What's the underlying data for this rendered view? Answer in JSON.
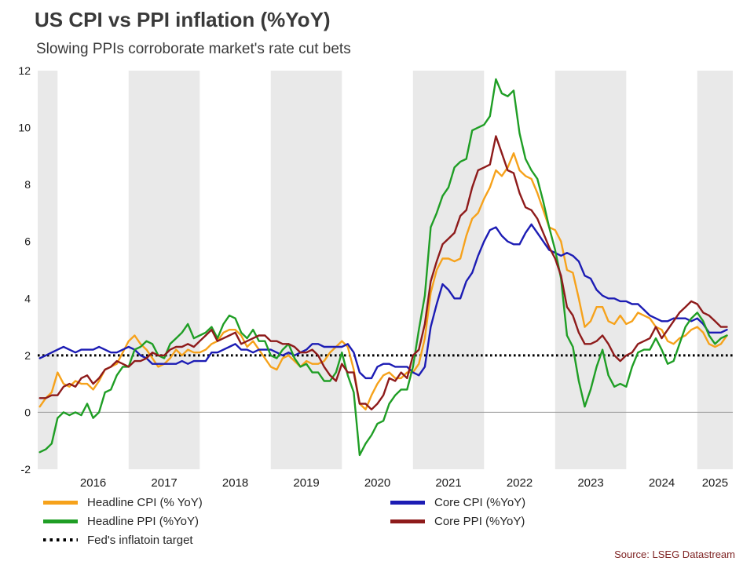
{
  "chart_data": {
    "type": "line",
    "title": "US CPI vs PPI inflation (%YoY)",
    "subtitle": "Slowing PPIs corroborate market's rate cut bets",
    "xlabel": "",
    "ylabel": "",
    "ylim": [
      -2,
      12
    ],
    "y_ticks": [
      -2,
      0,
      2,
      4,
      6,
      8,
      10,
      12
    ],
    "x_domain": [
      2015.72,
      2025.5
    ],
    "x_start": {
      "year": 2015,
      "month": 10
    },
    "frequency": "monthly",
    "x_tick_years": [
      2016,
      2017,
      2018,
      2019,
      2020,
      2021,
      2022,
      2023,
      2024,
      2025
    ],
    "shaded_years": [
      2015,
      2017,
      2019,
      2021,
      2023,
      2025
    ],
    "band_color": "#e9e9e9",
    "grid": "off",
    "legend_position": "bottom",
    "target_line": {
      "value": 2,
      "label": "Fed's inflatoin target",
      "color": "#000000",
      "style": "dotted"
    },
    "series": [
      {
        "id": "headline-cpi",
        "name": "Headline CPI (% YoY)",
        "color": "#f6a21b",
        "values": [
          0.2,
          0.5,
          0.7,
          1.4,
          1.0,
          0.9,
          1.1,
          1.0,
          1.0,
          0.8,
          1.1,
          1.5,
          1.6,
          1.7,
          2.1,
          2.5,
          2.7,
          2.4,
          2.2,
          1.9,
          1.6,
          1.7,
          1.9,
          2.2,
          2.0,
          2.2,
          2.1,
          2.1,
          2.2,
          2.4,
          2.5,
          2.8,
          2.9,
          2.9,
          2.7,
          2.3,
          2.5,
          2.2,
          1.9,
          1.6,
          1.5,
          1.9,
          2.0,
          1.8,
          1.6,
          1.8,
          1.7,
          1.7,
          1.8,
          2.1,
          2.3,
          2.5,
          2.3,
          1.5,
          0.3,
          0.1,
          0.6,
          1.0,
          1.3,
          1.4,
          1.2,
          1.2,
          1.4,
          1.4,
          1.7,
          2.6,
          4.2,
          5.0,
          5.4,
          5.4,
          5.3,
          5.4,
          6.2,
          6.8,
          7.0,
          7.5,
          7.9,
          8.5,
          8.3,
          8.6,
          9.1,
          8.5,
          8.3,
          8.2,
          7.7,
          7.1,
          6.5,
          6.4,
          6.0,
          5.0,
          4.9,
          4.0,
          3.0,
          3.2,
          3.7,
          3.7,
          3.2,
          3.1,
          3.4,
          3.1,
          3.2,
          3.5,
          3.4,
          3.3,
          3.0,
          2.9,
          2.5,
          2.4,
          2.6,
          2.7,
          2.9,
          3.0,
          2.8,
          2.4,
          2.3,
          2.4,
          2.7
        ]
      },
      {
        "id": "core-cpi",
        "name": "Core CPI (%YoY)",
        "color": "#1c1cb4",
        "values": [
          1.9,
          2.0,
          2.1,
          2.2,
          2.3,
          2.2,
          2.1,
          2.2,
          2.2,
          2.2,
          2.3,
          2.2,
          2.1,
          2.1,
          2.2,
          2.3,
          2.2,
          2.0,
          1.9,
          1.7,
          1.7,
          1.7,
          1.7,
          1.7,
          1.8,
          1.7,
          1.8,
          1.8,
          1.8,
          2.1,
          2.1,
          2.2,
          2.3,
          2.4,
          2.2,
          2.2,
          2.1,
          2.2,
          2.2,
          2.2,
          2.1,
          2.0,
          2.1,
          2.0,
          2.1,
          2.2,
          2.4,
          2.4,
          2.3,
          2.3,
          2.3,
          2.3,
          2.4,
          2.1,
          1.4,
          1.2,
          1.2,
          1.6,
          1.7,
          1.7,
          1.6,
          1.6,
          1.6,
          1.4,
          1.3,
          1.6,
          3.0,
          3.8,
          4.5,
          4.3,
          4.0,
          4.0,
          4.6,
          4.9,
          5.5,
          6.0,
          6.4,
          6.5,
          6.2,
          6.0,
          5.9,
          5.9,
          6.3,
          6.6,
          6.3,
          6.0,
          5.7,
          5.6,
          5.5,
          5.6,
          5.5,
          5.3,
          4.8,
          4.7,
          4.3,
          4.1,
          4.0,
          4.0,
          3.9,
          3.9,
          3.8,
          3.8,
          3.6,
          3.4,
          3.3,
          3.2,
          3.2,
          3.3,
          3.3,
          3.3,
          3.2,
          3.3,
          3.1,
          2.8,
          2.8,
          2.8,
          2.9
        ]
      },
      {
        "id": "headline-ppi",
        "name": "Headline PPI (%YoY)",
        "color": "#1f9e25",
        "values": [
          -1.4,
          -1.3,
          -1.1,
          -0.2,
          0.0,
          -0.1,
          0.0,
          -0.1,
          0.3,
          -0.2,
          0.0,
          0.7,
          0.8,
          1.3,
          1.6,
          1.6,
          2.2,
          2.3,
          2.5,
          2.4,
          2.0,
          1.9,
          2.4,
          2.6,
          2.8,
          3.1,
          2.6,
          2.7,
          2.8,
          3.0,
          2.6,
          3.1,
          3.4,
          3.3,
          2.8,
          2.6,
          2.9,
          2.5,
          2.5,
          2.0,
          1.9,
          2.2,
          2.4,
          1.9,
          1.6,
          1.7,
          1.4,
          1.4,
          1.1,
          1.1,
          1.4,
          2.1,
          1.3,
          0.7,
          -1.5,
          -1.1,
          -0.8,
          -0.4,
          -0.3,
          0.3,
          0.6,
          0.8,
          0.8,
          1.6,
          2.9,
          4.1,
          6.5,
          7.0,
          7.6,
          7.9,
          8.6,
          8.8,
          8.9,
          9.9,
          10.0,
          10.1,
          10.4,
          11.7,
          11.2,
          11.1,
          11.3,
          9.8,
          8.9,
          8.5,
          8.2,
          7.4,
          6.5,
          5.7,
          4.7,
          2.7,
          2.3,
          1.1,
          0.2,
          0.8,
          1.6,
          2.2,
          1.3,
          0.9,
          1.0,
          0.9,
          1.6,
          2.1,
          2.2,
          2.2,
          2.6,
          2.2,
          1.7,
          1.8,
          2.4,
          3.0,
          3.3,
          3.5,
          3.2,
          2.7,
          2.4,
          2.6,
          2.7
        ]
      },
      {
        "id": "core-ppi",
        "name": "Core PPI (%YoY)",
        "color": "#8e1b1b",
        "values": [
          0.5,
          0.5,
          0.6,
          0.6,
          0.9,
          1.0,
          0.9,
          1.2,
          1.3,
          1.0,
          1.2,
          1.5,
          1.6,
          1.8,
          1.7,
          1.6,
          1.8,
          1.8,
          1.9,
          2.1,
          2.0,
          2.0,
          2.2,
          2.3,
          2.3,
          2.4,
          2.3,
          2.5,
          2.7,
          2.9,
          2.5,
          2.6,
          2.7,
          2.8,
          2.4,
          2.5,
          2.6,
          2.7,
          2.7,
          2.5,
          2.5,
          2.4,
          2.4,
          2.3,
          2.1,
          2.1,
          2.2,
          2.0,
          1.6,
          1.3,
          1.1,
          1.7,
          1.4,
          1.4,
          0.3,
          0.3,
          0.1,
          0.3,
          0.6,
          1.2,
          1.1,
          1.4,
          1.2,
          2.0,
          2.2,
          3.1,
          4.6,
          5.3,
          5.9,
          6.1,
          6.3,
          6.9,
          7.1,
          7.9,
          8.5,
          8.6,
          8.7,
          9.7,
          9.1,
          8.5,
          8.4,
          7.7,
          7.2,
          7.1,
          6.8,
          6.3,
          5.8,
          5.4,
          4.8,
          3.7,
          3.4,
          2.8,
          2.4,
          2.4,
          2.5,
          2.7,
          2.4,
          2.0,
          1.8,
          2.0,
          2.1,
          2.4,
          2.5,
          2.6,
          3.0,
          2.6,
          2.9,
          3.2,
          3.5,
          3.7,
          3.9,
          3.8,
          3.5,
          3.4,
          3.2,
          3.0,
          3.0
        ]
      }
    ]
  },
  "legend": {
    "items": [
      {
        "label": "Headline CPI (% YoY)",
        "color": "#f6a21b",
        "style": "solid"
      },
      {
        "label": "Headline PPI (%YoY)",
        "color": "#1f9e25",
        "style": "solid"
      },
      {
        "label": "Fed's inflatoin target",
        "color": "#000000",
        "style": "dotted"
      },
      {
        "label": "Core CPI (%YoY)",
        "color": "#1c1cb4",
        "style": "solid"
      },
      {
        "label": "Core PPI (%YoY)",
        "color": "#8e1b1b",
        "style": "solid"
      }
    ]
  },
  "source": "Source: LSEG Datastream"
}
